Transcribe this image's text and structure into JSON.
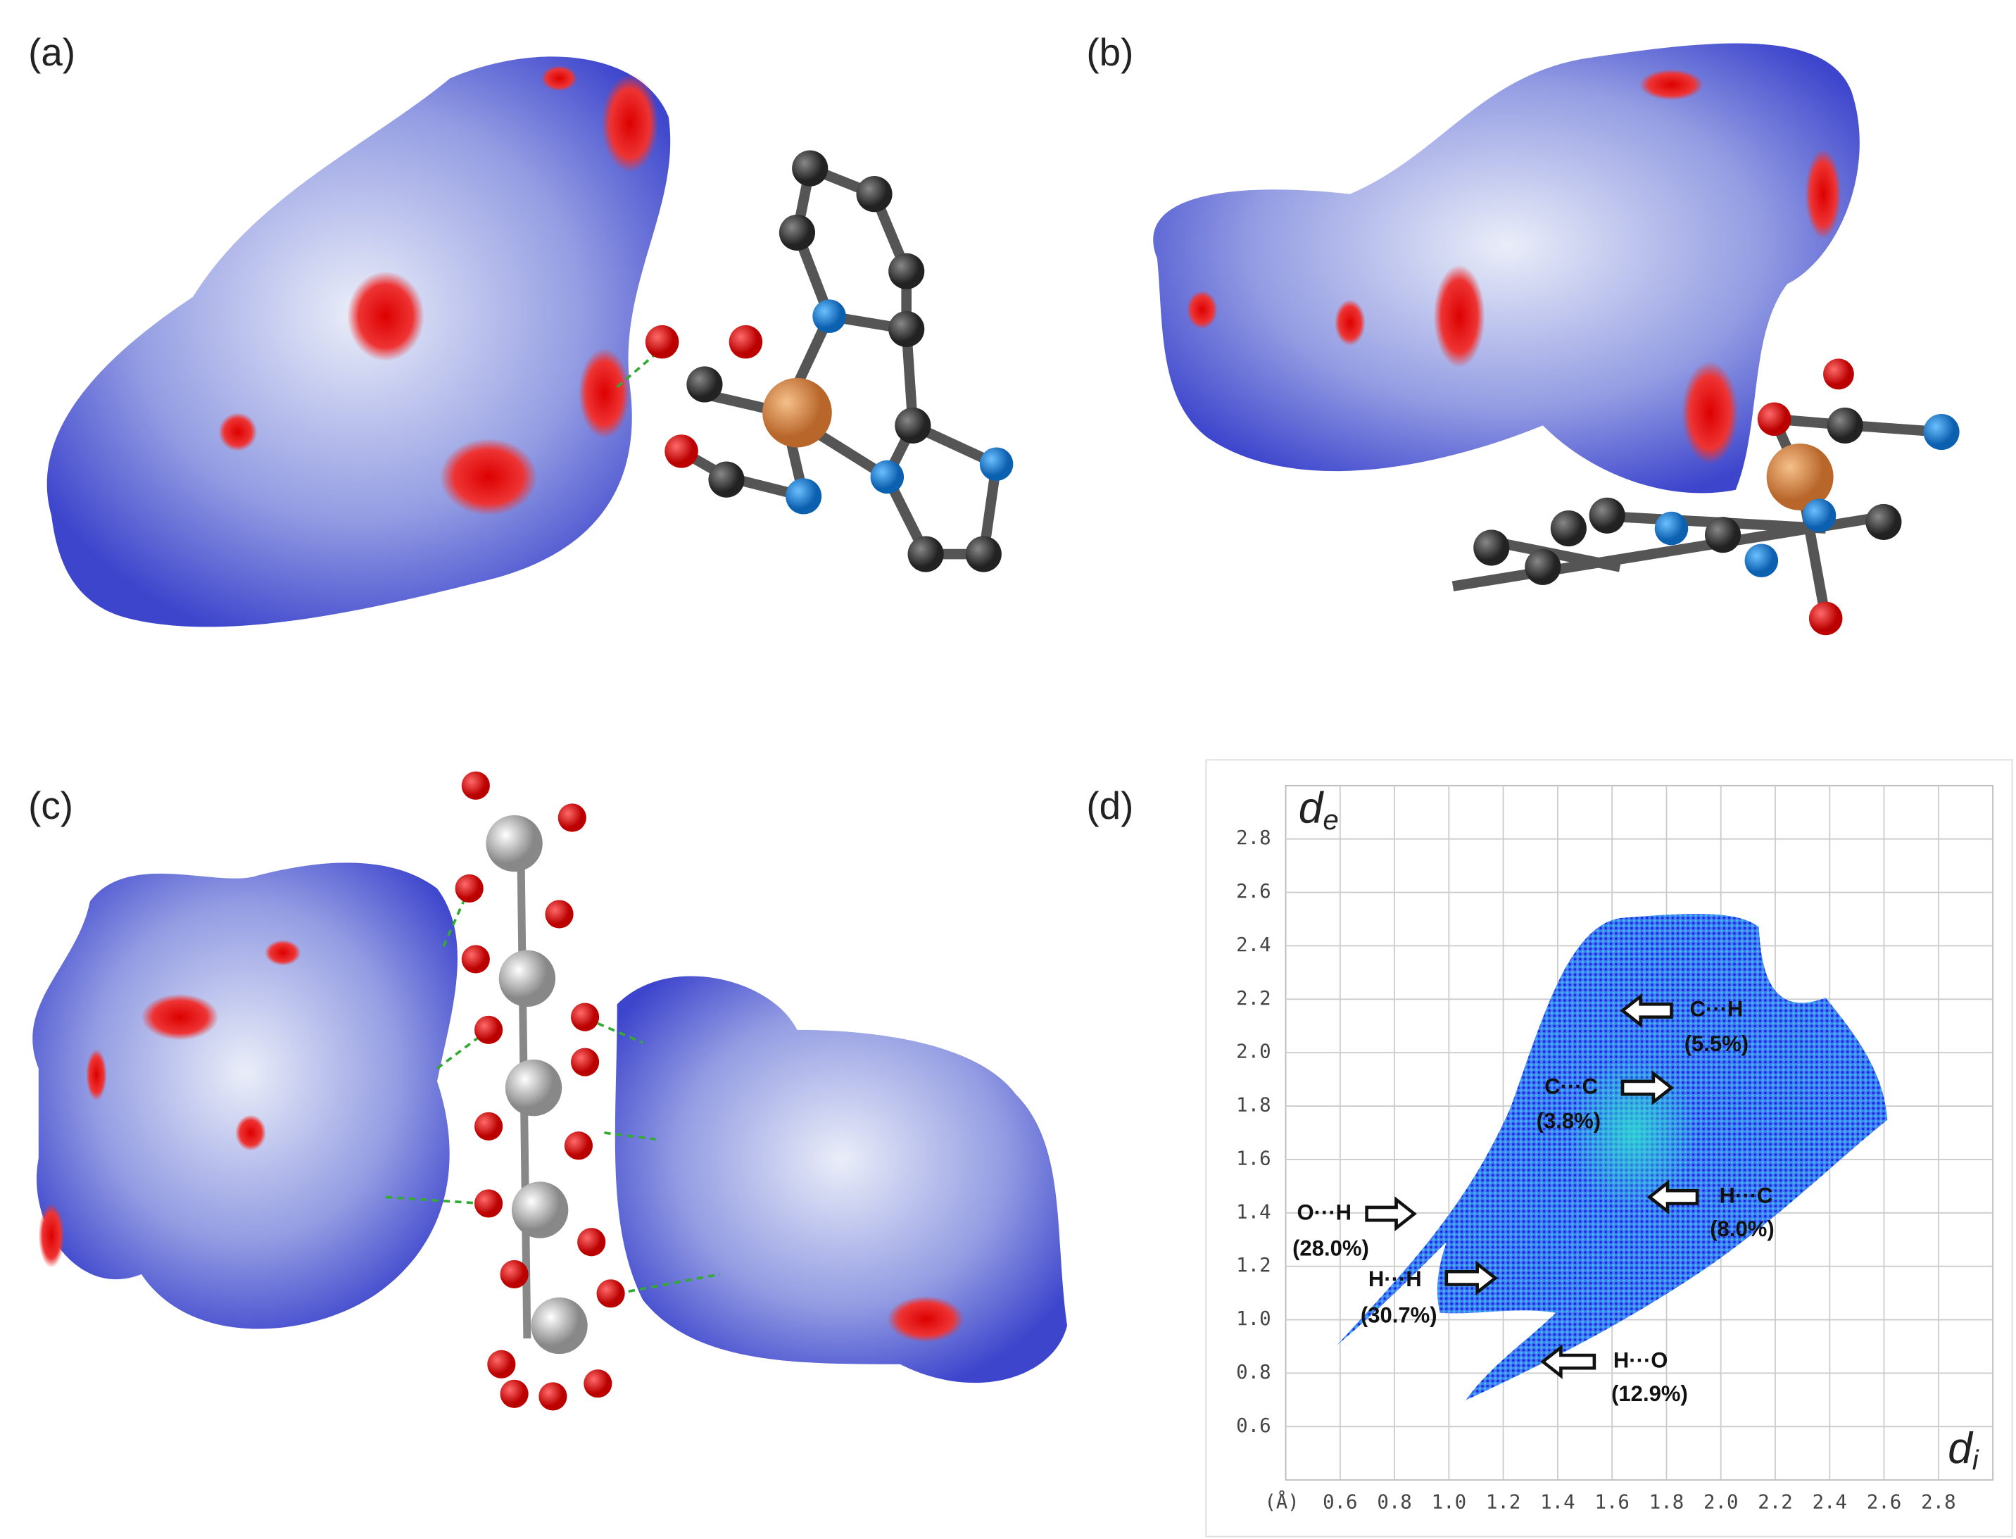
{
  "panels": [
    {
      "label": "(a)"
    },
    {
      "label": "(b)"
    },
    {
      "label": "(c)"
    },
    {
      "label": "(d)"
    }
  ],
  "fingerprint": {
    "x_label": "d",
    "x_sub": "i",
    "y_label": "d",
    "y_sub": "e",
    "unit": "(Å)",
    "xlim": [
      0.4,
      3.0
    ],
    "ylim": [
      0.4,
      3.0
    ],
    "xticks": [
      0.6,
      0.8,
      {
        "value": 1,
        "label": "1.0"
      },
      1.2,
      1.4,
      1.6,
      1.8,
      {
        "value": 2,
        "label": "2.0"
      },
      2.2,
      2.4,
      2.6,
      2.8
    ],
    "yticks": [
      0.6,
      0.8,
      {
        "value": 1,
        "label": "1.0"
      },
      1.2,
      1.4,
      1.6,
      1.8,
      {
        "value": 2,
        "label": "2.0"
      },
      2.2,
      2.4,
      2.6,
      2.8
    ],
    "grid": true,
    "annotations": [
      {
        "label": "C···H",
        "percent": "(5.5%)"
      },
      {
        "label": "C···C",
        "percent": "(3.8%)"
      },
      {
        "label": "H···C",
        "percent": "(8.0%)"
      },
      {
        "label": "O···H",
        "percent": "(28.0%)"
      },
      {
        "label": "H···H",
        "percent": "(30.7%)"
      },
      {
        "label": "H···O",
        "percent": "(12.9%)"
      }
    ]
  }
}
